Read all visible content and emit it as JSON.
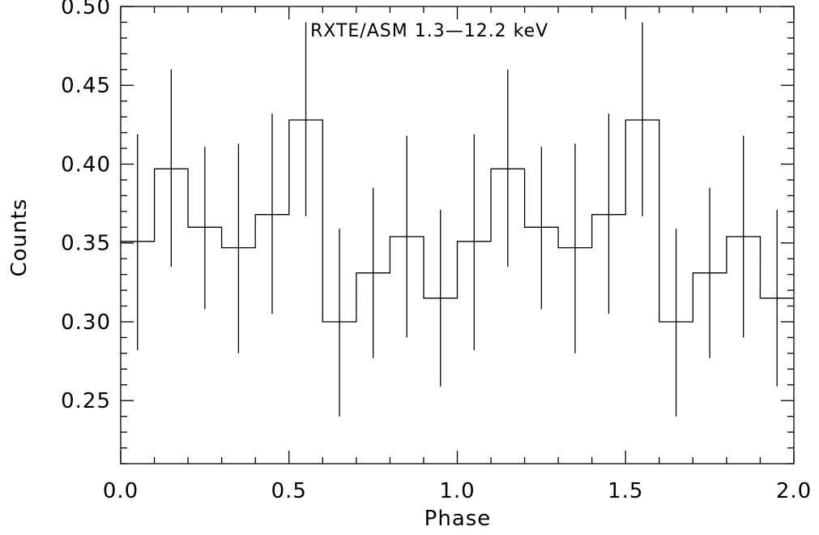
{
  "chart_data": {
    "type": "line",
    "title": "RXTE/ASM 1.3—12.2 keV",
    "xlabel": "Phase",
    "ylabel": "Counts",
    "xlim": [
      0.0,
      2.0
    ],
    "ylim": [
      0.21,
      0.5
    ],
    "xticks": [
      {
        "value": 0.0,
        "label": "0.0"
      },
      {
        "value": 0.5,
        "label": "0.5"
      },
      {
        "value": 1.0,
        "label": "1.0"
      },
      {
        "value": 1.5,
        "label": "1.5"
      },
      {
        "value": 2.0,
        "label": "2.0"
      }
    ],
    "yticks": [
      {
        "value": 0.25,
        "label": "0.25"
      },
      {
        "value": 0.3,
        "label": "0.30"
      },
      {
        "value": 0.35,
        "label": "0.35"
      },
      {
        "value": 0.4,
        "label": "0.40"
      },
      {
        "value": 0.45,
        "label": "0.45"
      },
      {
        "value": 0.5,
        "label": "0.50"
      }
    ],
    "series": [
      {
        "style": "histogram-step-with-errorbars",
        "x": [
          0.05,
          0.15,
          0.25,
          0.35,
          0.45,
          0.55,
          0.65,
          0.75,
          0.85,
          0.95,
          1.05,
          1.15,
          1.25,
          1.35,
          1.45,
          1.55,
          1.65,
          1.75,
          1.85,
          1.95
        ],
        "values": [
          0.351,
          0.397,
          0.36,
          0.347,
          0.368,
          0.428,
          0.3,
          0.331,
          0.354,
          0.315,
          0.351,
          0.397,
          0.36,
          0.347,
          0.368,
          0.428,
          0.3,
          0.331,
          0.354,
          0.315
        ],
        "err_low": [
          0.282,
          0.335,
          0.308,
          0.28,
          0.305,
          0.367,
          0.24,
          0.277,
          0.29,
          0.259,
          0.282,
          0.335,
          0.308,
          0.28,
          0.305,
          0.367,
          0.24,
          0.277,
          0.29,
          0.259
        ],
        "err_high": [
          0.419,
          0.46,
          0.411,
          0.413,
          0.432,
          0.49,
          0.359,
          0.385,
          0.418,
          0.371,
          0.419,
          0.46,
          0.411,
          0.413,
          0.432,
          0.49,
          0.359,
          0.385,
          0.418,
          0.371
        ]
      }
    ],
    "grid": false,
    "legend": "none"
  }
}
